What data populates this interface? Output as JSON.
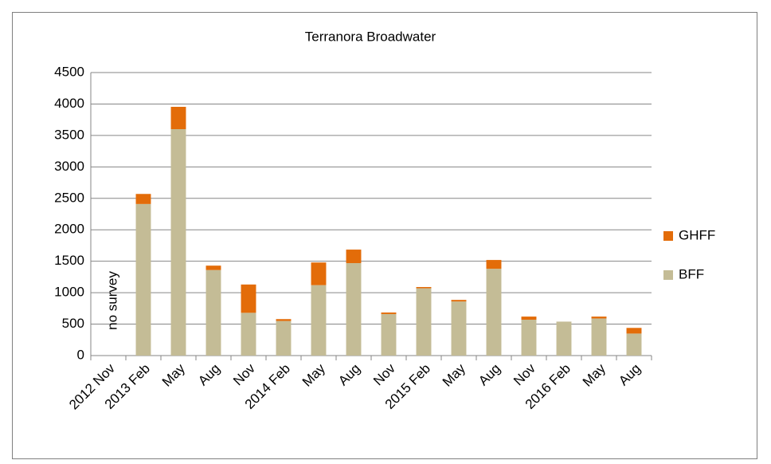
{
  "chart_data": {
    "type": "bar",
    "stacked": true,
    "title": "Terranora Broadwater",
    "categories": [
      "2012 Nov",
      "2013 Feb",
      "May",
      "Aug",
      "Nov",
      "2014 Feb",
      "May",
      "Aug",
      "Nov",
      "2015 Feb",
      "May",
      "Aug",
      "Nov",
      "2016 Feb",
      "May",
      "Aug"
    ],
    "series": [
      {
        "name": "BFF",
        "color": "#c4bc96",
        "values": [
          null,
          2410,
          3600,
          1360,
          680,
          550,
          1120,
          1470,
          660,
          1070,
          860,
          1380,
          570,
          540,
          590,
          350
        ]
      },
      {
        "name": "GHFF",
        "color": "#e36c09",
        "values": [
          null,
          160,
          355,
          70,
          450,
          30,
          360,
          215,
          25,
          20,
          25,
          140,
          50,
          0,
          30,
          90
        ]
      }
    ],
    "annotation": "no survey",
    "ylim": [
      0,
      4500
    ],
    "yticks": [
      0,
      500,
      1000,
      1500,
      2000,
      2500,
      3000,
      3500,
      4000,
      4500
    ],
    "grid": true,
    "legend": "right"
  }
}
